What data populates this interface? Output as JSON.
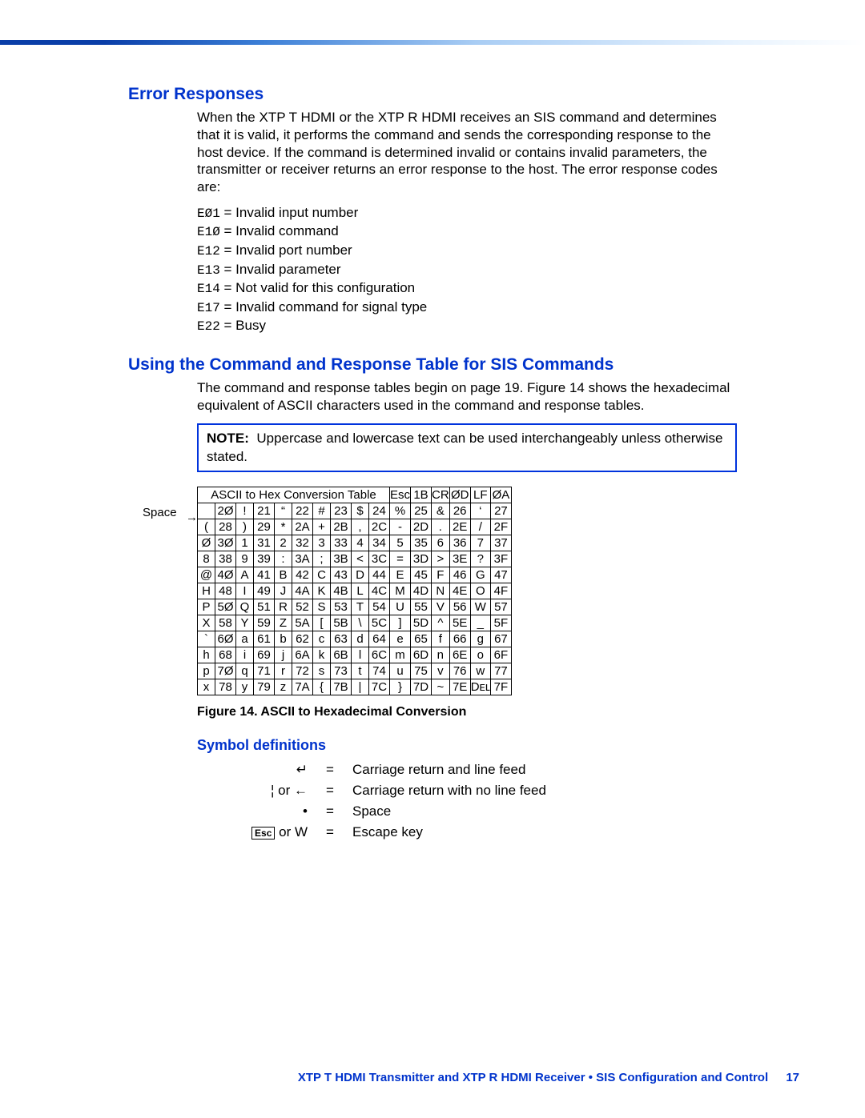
{
  "section1": {
    "title": "Error Responses",
    "paragraph": "When the XTP T HDMI or the XTP R HDMI receives an SIS command and determines that it is valid, it performs the command and sends the corresponding response to the host device. If the command is determined invalid or contains invalid parameters, the transmitter or receiver returns an error response to the host. The error response codes are:",
    "errors": [
      {
        "code": "EØ1",
        "desc": "Invalid input number"
      },
      {
        "code": "E1Ø",
        "desc": "Invalid command"
      },
      {
        "code": "E12",
        "desc": "Invalid port number"
      },
      {
        "code": "E13",
        "desc": "Invalid parameter"
      },
      {
        "code": "E14",
        "desc": "Not valid for this configuration"
      },
      {
        "code": "E17",
        "desc": "Invalid command for signal type"
      },
      {
        "code": "E22",
        "desc": "Busy"
      }
    ]
  },
  "section2": {
    "title": "Using the Command and Response Table for SIS Commands",
    "paragraph": "The command and response tables begin on page 19. Figure 14 shows the hexadecimal equivalent of ASCII characters used in the command and response tables.",
    "note_label": "NOTE:",
    "note_text": "Uppercase and lowercase text can be used interchangeably unless otherwise stated."
  },
  "ascii": {
    "header_title": "ASCII to Hex Conversion Table",
    "specials": [
      {
        "ch": "Esc",
        "hx": "1B"
      },
      {
        "ch": "CR",
        "hx": "ØD"
      },
      {
        "ch": "LF",
        "hx": "ØA"
      }
    ],
    "space_label": "Space",
    "rows": [
      [
        {
          "ch": " ",
          "hx": "2Ø"
        },
        {
          "ch": "!",
          "hx": "21"
        },
        {
          "ch": "“",
          "hx": "22"
        },
        {
          "ch": "#",
          "hx": "23"
        },
        {
          "ch": "$",
          "hx": "24"
        },
        {
          "ch": "%",
          "hx": "25"
        },
        {
          "ch": "&",
          "hx": "26"
        },
        {
          "ch": "‘",
          "hx": "27"
        }
      ],
      [
        {
          "ch": "(",
          "hx": "28"
        },
        {
          "ch": ")",
          "hx": "29"
        },
        {
          "ch": "*",
          "hx": "2A"
        },
        {
          "ch": "+",
          "hx": "2B"
        },
        {
          "ch": ",",
          "hx": "2C"
        },
        {
          "ch": "-",
          "hx": "2D"
        },
        {
          "ch": ".",
          "hx": "2E"
        },
        {
          "ch": "/",
          "hx": "2F"
        }
      ],
      [
        {
          "ch": "Ø",
          "hx": "3Ø"
        },
        {
          "ch": "1",
          "hx": "31"
        },
        {
          "ch": "2",
          "hx": "32"
        },
        {
          "ch": "3",
          "hx": "33"
        },
        {
          "ch": "4",
          "hx": "34"
        },
        {
          "ch": "5",
          "hx": "35"
        },
        {
          "ch": "6",
          "hx": "36"
        },
        {
          "ch": "7",
          "hx": "37"
        }
      ],
      [
        {
          "ch": "8",
          "hx": "38"
        },
        {
          "ch": "9",
          "hx": "39"
        },
        {
          "ch": ":",
          "hx": "3A"
        },
        {
          "ch": ";",
          "hx": "3B"
        },
        {
          "ch": "<",
          "hx": "3C"
        },
        {
          "ch": "=",
          "hx": "3D"
        },
        {
          "ch": ">",
          "hx": "3E"
        },
        {
          "ch": "?",
          "hx": "3F"
        }
      ],
      [
        {
          "ch": "@",
          "hx": "4Ø"
        },
        {
          "ch": "A",
          "hx": "41"
        },
        {
          "ch": "B",
          "hx": "42"
        },
        {
          "ch": "C",
          "hx": "43"
        },
        {
          "ch": "D",
          "hx": "44"
        },
        {
          "ch": "E",
          "hx": "45"
        },
        {
          "ch": "F",
          "hx": "46"
        },
        {
          "ch": "G",
          "hx": "47"
        }
      ],
      [
        {
          "ch": "H",
          "hx": "48"
        },
        {
          "ch": "I",
          "hx": "49"
        },
        {
          "ch": "J",
          "hx": "4A"
        },
        {
          "ch": "K",
          "hx": "4B"
        },
        {
          "ch": "L",
          "hx": "4C"
        },
        {
          "ch": "M",
          "hx": "4D"
        },
        {
          "ch": "N",
          "hx": "4E"
        },
        {
          "ch": "O",
          "hx": "4F"
        }
      ],
      [
        {
          "ch": "P",
          "hx": "5Ø"
        },
        {
          "ch": "Q",
          "hx": "51"
        },
        {
          "ch": "R",
          "hx": "52"
        },
        {
          "ch": "S",
          "hx": "53"
        },
        {
          "ch": "T",
          "hx": "54"
        },
        {
          "ch": "U",
          "hx": "55"
        },
        {
          "ch": "V",
          "hx": "56"
        },
        {
          "ch": "W",
          "hx": "57"
        }
      ],
      [
        {
          "ch": "X",
          "hx": "58"
        },
        {
          "ch": "Y",
          "hx": "59"
        },
        {
          "ch": "Z",
          "hx": "5A"
        },
        {
          "ch": "[",
          "hx": "5B"
        },
        {
          "ch": "\\",
          "hx": "5C"
        },
        {
          "ch": "]",
          "hx": "5D"
        },
        {
          "ch": "^",
          "hx": "5E"
        },
        {
          "ch": "_",
          "hx": "5F"
        }
      ],
      [
        {
          "ch": "`",
          "hx": "6Ø"
        },
        {
          "ch": "a",
          "hx": "61"
        },
        {
          "ch": "b",
          "hx": "62"
        },
        {
          "ch": "c",
          "hx": "63"
        },
        {
          "ch": "d",
          "hx": "64"
        },
        {
          "ch": "e",
          "hx": "65"
        },
        {
          "ch": "f",
          "hx": "66"
        },
        {
          "ch": "g",
          "hx": "67"
        }
      ],
      [
        {
          "ch": "h",
          "hx": "68"
        },
        {
          "ch": "i",
          "hx": "69"
        },
        {
          "ch": "j",
          "hx": "6A"
        },
        {
          "ch": "k",
          "hx": "6B"
        },
        {
          "ch": "l",
          "hx": "6C"
        },
        {
          "ch": "m",
          "hx": "6D"
        },
        {
          "ch": "n",
          "hx": "6E"
        },
        {
          "ch": "o",
          "hx": "6F"
        }
      ],
      [
        {
          "ch": "p",
          "hx": "7Ø"
        },
        {
          "ch": "q",
          "hx": "71"
        },
        {
          "ch": "r",
          "hx": "72"
        },
        {
          "ch": "s",
          "hx": "73"
        },
        {
          "ch": "t",
          "hx": "74"
        },
        {
          "ch": "u",
          "hx": "75"
        },
        {
          "ch": "v",
          "hx": "76"
        },
        {
          "ch": "w",
          "hx": "77"
        }
      ],
      [
        {
          "ch": "x",
          "hx": "78"
        },
        {
          "ch": "y",
          "hx": "79"
        },
        {
          "ch": "z",
          "hx": "7A"
        },
        {
          "ch": "{",
          "hx": "7B"
        },
        {
          "ch": "|",
          "hx": "7C"
        },
        {
          "ch": "}",
          "hx": "7D"
        },
        {
          "ch": "~",
          "hx": "7E"
        },
        {
          "ch": "Dᴇʟ",
          "hx": "7F"
        }
      ]
    ]
  },
  "figure_caption": "Figure 14.   ASCII to Hexadecimal Conversion",
  "symbols": {
    "title": "Symbol definitions",
    "items": [
      {
        "sym": "↵",
        "desc": "Carriage return and line feed"
      },
      {
        "sym": "¦ or ←",
        "desc": "Carriage return with no line feed"
      },
      {
        "sym": "•",
        "desc": "Space"
      },
      {
        "sym_html": "<span class='esc-key'>Esc</span> or W",
        "desc": "Escape key"
      }
    ]
  },
  "footer": {
    "text": "XTP T HDMI Transmitter and XTP R HDMI Receiver • SIS Configuration and Control",
    "page": "17"
  }
}
